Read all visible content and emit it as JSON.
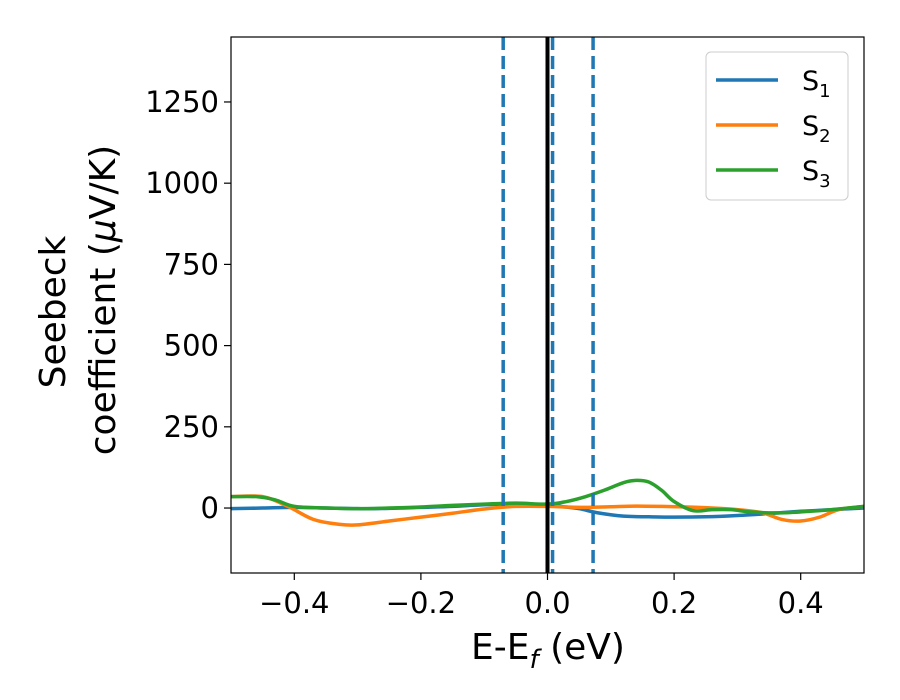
{
  "chart_data": {
    "type": "line",
    "xlabel": {
      "main": "E-E",
      "sub": "f",
      "unit": " (eV)"
    },
    "ylabel": {
      "line1": "Seebeck",
      "line2": "coefficient  (",
      "mu": "μ",
      "unit": "V/K)"
    },
    "xlim": [
      -0.5,
      0.5
    ],
    "ylim": [
      -200,
      1450
    ],
    "xticks": [
      -0.4,
      -0.2,
      0.0,
      0.2,
      0.4
    ],
    "xtick_labels": [
      "−0.4",
      "−0.2",
      "0.0",
      "0.2",
      "0.4"
    ],
    "yticks": [
      0,
      250,
      500,
      750,
      1000,
      1250
    ],
    "ytick_labels": [
      "0",
      "250",
      "500",
      "750",
      "1000",
      "1250"
    ],
    "grid": false,
    "legend": "top-right",
    "vertical_lines": [
      {
        "x": 0.0,
        "style": "solid",
        "color": "#000000"
      },
      {
        "x": -0.07,
        "style": "dashed",
        "color": "#1f77b4"
      },
      {
        "x": 0.008,
        "style": "dashed",
        "color": "#1f77b4"
      },
      {
        "x": 0.072,
        "style": "dashed",
        "color": "#1f77b4"
      }
    ],
    "series": [
      {
        "name": "S",
        "sub": "1",
        "color": "#1f77b4",
        "x": [
          -0.5,
          -0.45,
          -0.4,
          -0.35,
          -0.3,
          -0.25,
          -0.2,
          -0.15,
          -0.1,
          -0.05,
          0.0,
          0.02,
          0.05,
          0.08,
          0.12,
          0.16,
          0.2,
          0.25,
          0.3,
          0.35,
          0.4,
          0.45,
          0.5
        ],
        "y": [
          -2,
          0,
          2,
          0,
          -2,
          -1,
          2,
          5,
          10,
          12,
          10,
          5,
          -2,
          -15,
          -25,
          -27,
          -28,
          -27,
          -23,
          -17,
          -10,
          -5,
          0
        ]
      },
      {
        "name": "S",
        "sub": "2",
        "color": "#ff7f0e",
        "x": [
          -0.5,
          -0.45,
          -0.41,
          -0.37,
          -0.33,
          -0.3,
          -0.25,
          -0.2,
          -0.15,
          -0.1,
          -0.05,
          0.0,
          0.03,
          0.06,
          0.1,
          0.14,
          0.18,
          0.22,
          0.26,
          0.3,
          0.34,
          0.37,
          0.4,
          0.43,
          0.46,
          0.5
        ],
        "y": [
          35,
          35,
          5,
          -35,
          -50,
          -52,
          -40,
          -28,
          -16,
          -3,
          5,
          5,
          3,
          2,
          4,
          6,
          5,
          3,
          0,
          -5,
          -15,
          -35,
          -40,
          -28,
          -5,
          5
        ]
      },
      {
        "name": "S",
        "sub": "3",
        "color": "#2ca02c",
        "x": [
          -0.5,
          -0.46,
          -0.43,
          -0.4,
          -0.35,
          -0.3,
          -0.25,
          -0.2,
          -0.15,
          -0.1,
          -0.05,
          0.0,
          0.03,
          0.06,
          0.09,
          0.12,
          0.14,
          0.16,
          0.18,
          0.2,
          0.23,
          0.26,
          0.29,
          0.32,
          0.36,
          0.4,
          0.45,
          0.5
        ],
        "y": [
          35,
          35,
          25,
          5,
          0,
          -2,
          0,
          3,
          8,
          12,
          15,
          12,
          20,
          35,
          55,
          78,
          85,
          80,
          55,
          20,
          -8,
          -5,
          -5,
          -12,
          -15,
          -12,
          -5,
          5
        ]
      }
    ]
  }
}
